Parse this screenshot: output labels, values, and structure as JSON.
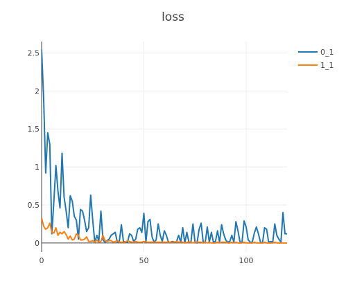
{
  "chart_data": {
    "type": "line",
    "title": "loss",
    "xlabel": "",
    "ylabel": "",
    "xlim": [
      0,
      120
    ],
    "ylim": [
      -0.12,
      2.65
    ],
    "xticks": [
      0,
      50,
      100
    ],
    "yticks": [
      0,
      0.5,
      1,
      1.5,
      2,
      2.5
    ],
    "x_tick_labels": [
      "0",
      "50",
      "100"
    ],
    "y_tick_labels": [
      "0",
      "0.5",
      "1",
      "1.5",
      "2",
      "2.5"
    ],
    "grid": true,
    "legend_position": "top-right",
    "series": [
      {
        "name": "0_1",
        "color": "#1f77b4",
        "x": [
          0,
          1,
          2,
          3,
          4,
          5,
          6,
          7,
          8,
          9,
          10,
          11,
          12,
          13,
          14,
          15,
          16,
          17,
          18,
          19,
          20,
          21,
          22,
          23,
          24,
          25,
          26,
          27,
          28,
          29,
          30,
          31,
          32,
          33,
          34,
          35,
          36,
          37,
          38,
          39,
          40,
          41,
          42,
          43,
          44,
          45,
          46,
          47,
          48,
          49,
          50,
          51,
          52,
          53,
          54,
          55,
          56,
          57,
          58,
          59,
          60,
          61,
          62,
          63,
          64,
          65,
          66,
          67,
          68,
          69,
          70,
          71,
          72,
          73,
          74,
          75,
          76,
          77,
          78,
          79,
          80,
          81,
          82,
          83,
          84,
          85,
          86,
          87,
          88,
          89,
          90,
          91,
          92,
          93,
          94,
          95,
          96,
          97,
          98,
          99,
          100,
          101,
          102,
          103,
          104,
          105,
          106,
          107,
          108,
          109,
          110,
          111,
          112,
          113,
          114,
          115,
          116,
          117,
          118,
          119,
          120
        ],
        "y": [
          2.55,
          1.9,
          0.92,
          1.45,
          1.3,
          0.12,
          0.55,
          1.02,
          0.68,
          0.46,
          1.18,
          0.6,
          0.42,
          0.2,
          0.62,
          0.55,
          0.35,
          0.3,
          0.05,
          0.44,
          0.42,
          0.3,
          0.15,
          0.2,
          0.63,
          0.3,
          0.01,
          0.1,
          0.03,
          0.42,
          0.04,
          0.01,
          0.03,
          0.05,
          0.1,
          0.12,
          0.14,
          0.01,
          0.02,
          0.24,
          0.02,
          0.01,
          0.01,
          0.12,
          0.1,
          0.02,
          0.05,
          0.18,
          0.2,
          0.14,
          0.39,
          0.01,
          0.28,
          0.31,
          0.08,
          0.01,
          0.04,
          0.25,
          0.1,
          0.02,
          0.16,
          0.1,
          0.01,
          0.01,
          0.02,
          0.01,
          0.02,
          0.1,
          0.01,
          0.2,
          0.0,
          0.14,
          0.01,
          0.01,
          0.25,
          0.01,
          0.0,
          0.18,
          0.26,
          0.01,
          0.01,
          0.21,
          0.01,
          0.14,
          0.01,
          0.02,
          0.16,
          0.01,
          0.24,
          0.12,
          0.04,
          0.01,
          0.02,
          0.1,
          0.01,
          0.28,
          0.16,
          0.01,
          0.01,
          0.29,
          0.21,
          0.04,
          0.01,
          0.01,
          0.13,
          0.21,
          0.12,
          0.01,
          0.0,
          0.2,
          0.18,
          0.01,
          0.02,
          0.01,
          0.25,
          0.1,
          0.05,
          0.01,
          0.4,
          0.12,
          0.12
        ]
      },
      {
        "name": "1_1",
        "color": "#ff7f0e",
        "x": [
          0,
          1,
          2,
          3,
          4,
          5,
          6,
          7,
          8,
          9,
          10,
          11,
          12,
          13,
          14,
          15,
          16,
          17,
          18,
          19,
          20,
          21,
          22,
          23,
          24,
          25,
          26,
          27,
          28,
          29,
          30,
          31,
          32,
          33,
          34,
          35,
          36,
          37,
          38,
          39,
          40,
          41,
          42,
          43,
          44,
          45,
          46,
          47,
          48,
          49,
          50,
          51,
          52,
          53,
          54,
          55,
          56,
          57,
          58,
          59,
          60,
          61,
          62,
          63,
          64,
          65,
          66,
          67,
          68,
          69,
          70,
          71,
          72,
          73,
          74,
          75,
          76,
          77,
          78,
          79,
          80,
          81,
          82,
          83,
          84,
          85,
          86,
          87,
          88,
          89,
          90,
          91,
          92,
          93,
          94,
          95,
          96,
          97,
          98,
          99,
          100,
          101,
          102,
          103,
          104,
          105,
          106,
          107,
          108,
          109,
          110,
          111,
          112,
          113,
          114,
          115,
          116,
          117,
          118,
          119,
          120
        ],
        "y": [
          0.33,
          0.22,
          0.18,
          0.2,
          0.26,
          0.14,
          0.13,
          0.2,
          0.1,
          0.14,
          0.12,
          0.15,
          0.11,
          0.05,
          0.09,
          0.04,
          0.05,
          0.12,
          0.1,
          0.04,
          0.04,
          0.05,
          0.08,
          0.02,
          0.02,
          0.03,
          0.01,
          0.04,
          0.01,
          0.02,
          0.1,
          0.03,
          0.02,
          0.03,
          0.03,
          0.01,
          0.02,
          0.03,
          0.01,
          0.01,
          0.01,
          0.01,
          0.03,
          0.02,
          0.01,
          0.01,
          0.02,
          0.01,
          0.01,
          0.01,
          0.02,
          0.01,
          0.01,
          0.01,
          0.01,
          0.01,
          0.01,
          0.01,
          0.01,
          0.01,
          0.01,
          0.01,
          0.01,
          0.01,
          0.01,
          0.01,
          0.02,
          0.01,
          0.01,
          0.01,
          0.0,
          0.01,
          0.01,
          0.01,
          0.0,
          0.01,
          0.01,
          0.01,
          0.01,
          0.0,
          0.01,
          0.0,
          0.01,
          0.0,
          0.0,
          0.0,
          0.01,
          0.0,
          0.01,
          0.01,
          0.01,
          0.0,
          0.0,
          0.01,
          0.0,
          0.01,
          0.0,
          0.0,
          0.0,
          0.01,
          0.0,
          0.0,
          0.0,
          0.0,
          0.01,
          0.0,
          0.0,
          0.0,
          0.0,
          0.01,
          0.0,
          0.0,
          0.0,
          0.0,
          0.01,
          0.0,
          0.0,
          0.0,
          0.0,
          0.0,
          0.0
        ]
      }
    ]
  }
}
